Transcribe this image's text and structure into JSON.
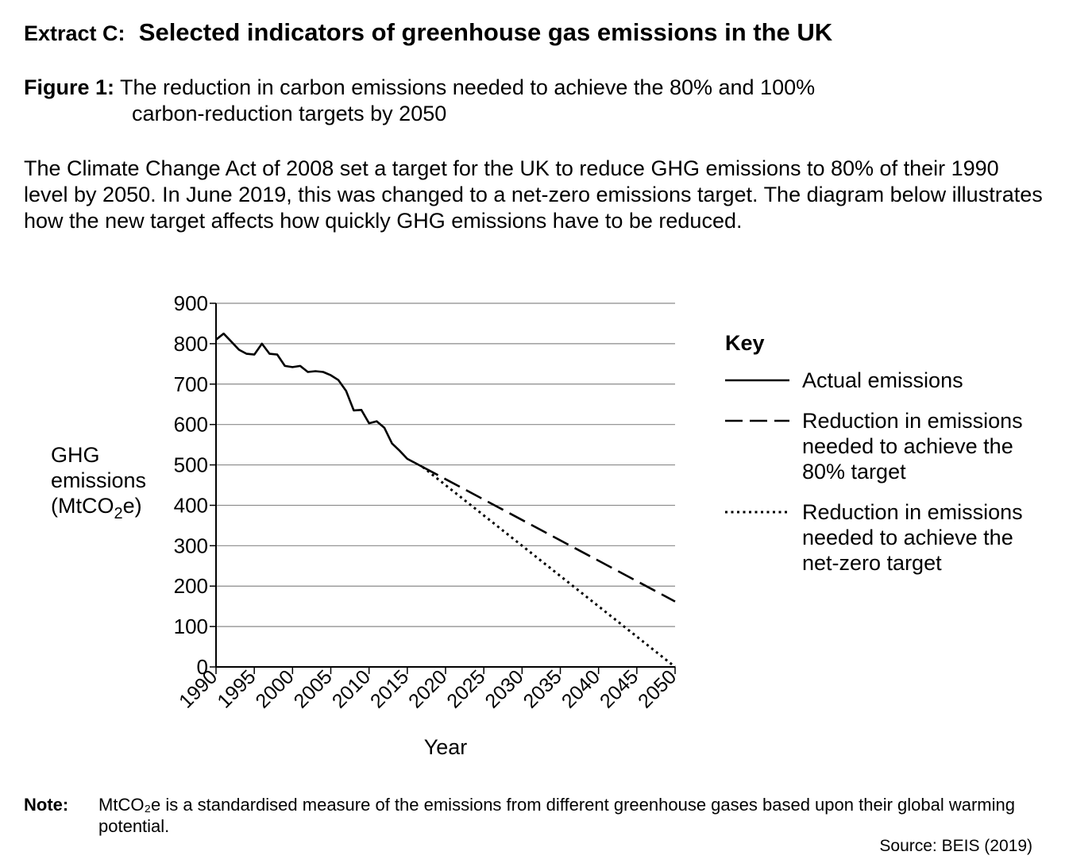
{
  "heading": {
    "label": "Extract C:",
    "title": "Selected indicators of greenhouse gas emissions in the UK"
  },
  "figure": {
    "label": "Figure 1:",
    "caption_line1": "The reduction in carbon emissions needed to achieve the 80% and 100%",
    "caption_line2": "carbon-reduction targets by 2050"
  },
  "intro": "The Climate Change Act of 2008 set a target for the UK to reduce GHG emissions to 80% of their 1990 level by 2050.  In June 2019, this was changed to a net-zero emissions target.  The diagram below illustrates how the new target affects how quickly GHG emissions have to be reduced.",
  "chart_data": {
    "type": "line",
    "ylabel_lines": [
      "GHG",
      "emissions",
      "(MtCO₂e)"
    ],
    "xlabel": "Year",
    "xlim": [
      1990,
      2050
    ],
    "ylim": [
      0,
      900
    ],
    "x_ticks": [
      1990,
      1995,
      2000,
      2005,
      2010,
      2015,
      2020,
      2025,
      2030,
      2035,
      2040,
      2045,
      2050
    ],
    "y_ticks": [
      0,
      100,
      200,
      300,
      400,
      500,
      600,
      700,
      800,
      900
    ],
    "grid": "horizontal",
    "legend": {
      "position": "right",
      "title": "Key",
      "entries": [
        {
          "series": "Actual emissions",
          "lines": [
            "Actual emissions"
          ],
          "style": "solid"
        },
        {
          "series": "Reduction in emissions needed to achieve the 80% target",
          "lines": [
            "Reduction in emissions",
            "needed to achieve the",
            "80% target"
          ],
          "style": "dashed"
        },
        {
          "series": "Reduction in emissions needed to achieve the net-zero target",
          "lines": [
            "Reduction in emissions",
            "needed to achieve the",
            "net-zero target"
          ],
          "style": "dotted"
        }
      ]
    },
    "series": [
      {
        "name": "Actual emissions",
        "style": "solid",
        "x": [
          1990,
          1991,
          1992,
          1993,
          1994,
          1995,
          1996,
          1997,
          1998,
          1999,
          2000,
          2001,
          2002,
          2003,
          2004,
          2005,
          2006,
          2007,
          2008,
          2009,
          2010,
          2011,
          2012,
          2013,
          2014,
          2015,
          2016,
          2017
        ],
        "y": [
          810,
          825,
          805,
          785,
          775,
          773,
          800,
          775,
          773,
          745,
          742,
          745,
          730,
          732,
          730,
          722,
          710,
          683,
          635,
          636,
          603,
          608,
          592,
          553,
          535,
          515,
          505,
          495
        ]
      },
      {
        "name": "Reduction in emissions needed to achieve the 80% target",
        "style": "dashed",
        "x": [
          2017,
          2050
        ],
        "y": [
          495,
          162
        ]
      },
      {
        "name": "Reduction in emissions needed to achieve the net-zero target",
        "style": "dotted",
        "x": [
          2017,
          2050
        ],
        "y": [
          495,
          0
        ]
      }
    ]
  },
  "note": {
    "label": "Note:",
    "text": "MtCO₂e is a standardised measure of the emissions from different greenhouse gases based upon their global warming potential."
  },
  "source": "Source: BEIS (2019)"
}
